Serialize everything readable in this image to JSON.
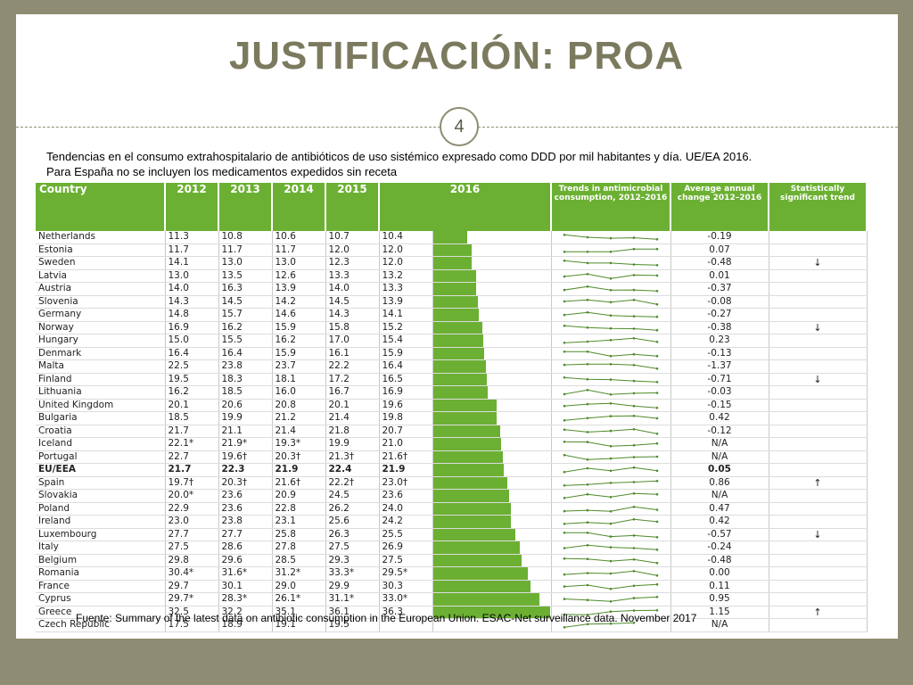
{
  "title": "JUSTIFICACIÓN: PROA",
  "page_number": "4",
  "caption_line1": "Tendencias en el consumo extrahospitalario de antibióticos de uso sistémico expresado como DDD por mil habitantes y día. UE/EA 2016.",
  "caption_line2": "Para España no se incluyen los medicamentos expedidos sin receta",
  "source": "Fuente: Summary of the latest data on antibiotic consumption in the European Union. ESAC-Net surveillance data. November 2017",
  "colors": {
    "header_green": "#6cb033",
    "bar_green": "#6cb033",
    "frame": "#8e8c72"
  },
  "headers": {
    "country": "Country",
    "y2012": "2012",
    "y2013": "2013",
    "y2014": "2014",
    "y2015": "2015",
    "y2016": "2016",
    "trends": "Trends in antimicrobial consumption, 2012–2016",
    "change": "Average annual change 2012–2016",
    "sig": "Statistically significant trend"
  },
  "rows": [
    {
      "country": "Netherlands",
      "v": [
        "11.3",
        "10.8",
        "10.6",
        "10.7",
        "10.4"
      ],
      "val": 10.4,
      "change": "-0.19",
      "sig": ""
    },
    {
      "country": "Estonia",
      "v": [
        "11.7",
        "11.7",
        "11.7",
        "12.0",
        "12.0"
      ],
      "val": 12.0,
      "change": "0.07",
      "sig": ""
    },
    {
      "country": "Sweden",
      "v": [
        "14.1",
        "13.0",
        "13.0",
        "12.3",
        "12.0"
      ],
      "val": 12.0,
      "change": "-0.48",
      "sig": "↓"
    },
    {
      "country": "Latvia",
      "v": [
        "13.0",
        "13.5",
        "12.6",
        "13.3",
        "13.2"
      ],
      "val": 13.2,
      "change": "0.01",
      "sig": ""
    },
    {
      "country": "Austria",
      "v": [
        "14.0",
        "16.3",
        "13.9",
        "14.0",
        "13.3"
      ],
      "val": 13.3,
      "change": "-0.37",
      "sig": ""
    },
    {
      "country": "Slovenia",
      "v": [
        "14.3",
        "14.5",
        "14.2",
        "14.5",
        "13.9"
      ],
      "val": 13.9,
      "change": "-0.08",
      "sig": ""
    },
    {
      "country": "Germany",
      "v": [
        "14.8",
        "15.7",
        "14.6",
        "14.3",
        "14.1"
      ],
      "val": 14.1,
      "change": "-0.27",
      "sig": ""
    },
    {
      "country": "Norway",
      "v": [
        "16.9",
        "16.2",
        "15.9",
        "15.8",
        "15.2"
      ],
      "val": 15.2,
      "change": "-0.38",
      "sig": "↓"
    },
    {
      "country": "Hungary",
      "v": [
        "15.0",
        "15.5",
        "16.2",
        "17.0",
        "15.4"
      ],
      "val": 15.4,
      "change": "0.23",
      "sig": ""
    },
    {
      "country": "Denmark",
      "v": [
        "16.4",
        "16.4",
        "15.9",
        "16.1",
        "15.9"
      ],
      "val": 15.9,
      "change": "-0.13",
      "sig": ""
    },
    {
      "country": "Malta",
      "v": [
        "22.5",
        "23.8",
        "23.7",
        "22.2",
        "16.4"
      ],
      "val": 16.4,
      "change": "-1.37",
      "sig": ""
    },
    {
      "country": "Finland",
      "v": [
        "19.5",
        "18.3",
        "18.1",
        "17.2",
        "16.5"
      ],
      "val": 16.5,
      "change": "-0.71",
      "sig": "↓"
    },
    {
      "country": "Lithuania",
      "v": [
        "16.2",
        "18.5",
        "16.0",
        "16.7",
        "16.9"
      ],
      "val": 16.9,
      "change": "-0.03",
      "sig": ""
    },
    {
      "country": "United Kingdom",
      "v": [
        "20.1",
        "20.6",
        "20.8",
        "20.1",
        "19.6"
      ],
      "val": 19.6,
      "change": "-0.15",
      "sig": ""
    },
    {
      "country": "Bulgaria",
      "v": [
        "18.5",
        "19.9",
        "21.2",
        "21.4",
        "19.8"
      ],
      "val": 19.8,
      "change": "0.42",
      "sig": ""
    },
    {
      "country": "Croatia",
      "v": [
        "21.7",
        "21.1",
        "21.4",
        "21.8",
        "20.7"
      ],
      "val": 20.7,
      "change": "-0.12",
      "sig": ""
    },
    {
      "country": "Iceland",
      "v": [
        "22.1*",
        "21.9*",
        "19.3*",
        "19.9",
        "21.0"
      ],
      "val": 21.0,
      "change": "N/A",
      "sig": ""
    },
    {
      "country": "Portugal",
      "v": [
        "22.7",
        "19.6†",
        "20.3†",
        "21.3†",
        "21.6†"
      ],
      "val": 21.6,
      "change": "N/A",
      "sig": ""
    },
    {
      "country": "EU/EEA",
      "v": [
        "21.7",
        "22.3",
        "21.9",
        "22.4",
        "21.9"
      ],
      "val": 21.9,
      "change": "0.05",
      "sig": "",
      "eu": true
    },
    {
      "country": "Spain",
      "v": [
        "19.7†",
        "20.3†",
        "21.6†",
        "22.2†",
        "23.0†"
      ],
      "val": 23.0,
      "change": "0.86",
      "sig": "↑"
    },
    {
      "country": "Slovakia",
      "v": [
        "20.0*",
        "23.6",
        "20.9",
        "24.5",
        "23.6"
      ],
      "val": 23.6,
      "change": "N/A",
      "sig": ""
    },
    {
      "country": "Poland",
      "v": [
        "22.9",
        "23.6",
        "22.8",
        "26.2",
        "24.0"
      ],
      "val": 24.0,
      "change": "0.47",
      "sig": ""
    },
    {
      "country": "Ireland",
      "v": [
        "23.0",
        "23.8",
        "23.1",
        "25.6",
        "24.2"
      ],
      "val": 24.2,
      "change": "0.42",
      "sig": ""
    },
    {
      "country": "Luxembourg",
      "v": [
        "27.7",
        "27.7",
        "25.8",
        "26.3",
        "25.5"
      ],
      "val": 25.5,
      "change": "-0.57",
      "sig": "↓"
    },
    {
      "country": "Italy",
      "v": [
        "27.5",
        "28.6",
        "27.8",
        "27.5",
        "26.9"
      ],
      "val": 26.9,
      "change": "-0.24",
      "sig": ""
    },
    {
      "country": "Belgium",
      "v": [
        "29.8",
        "29.6",
        "28.5",
        "29.3",
        "27.5"
      ],
      "val": 27.5,
      "change": "-0.48",
      "sig": ""
    },
    {
      "country": "Romania",
      "v": [
        "30.4*",
        "31.6*",
        "31.2*",
        "33.3*",
        "29.5*"
      ],
      "val": 29.5,
      "change": "0.00",
      "sig": ""
    },
    {
      "country": "France",
      "v": [
        "29.7",
        "30.1",
        "29.0",
        "29.9",
        "30.3"
      ],
      "val": 30.3,
      "change": "0.11",
      "sig": ""
    },
    {
      "country": "Cyprus",
      "v": [
        "29.7*",
        "28.3*",
        "26.1*",
        "31.1*",
        "33.0*"
      ],
      "val": 33.0,
      "change": "0.95",
      "sig": ""
    },
    {
      "country": "Greece",
      "v": [
        "32.5",
        "32.2",
        "35.1",
        "36.1",
        "36.3"
      ],
      "val": 36.3,
      "change": "1.15",
      "sig": "↑"
    },
    {
      "country": "Czech Republic",
      "v": [
        "17.5",
        "18.9",
        "19.1",
        "19.5",
        ""
      ],
      "val": null,
      "change": "N/A",
      "sig": ""
    }
  ]
}
